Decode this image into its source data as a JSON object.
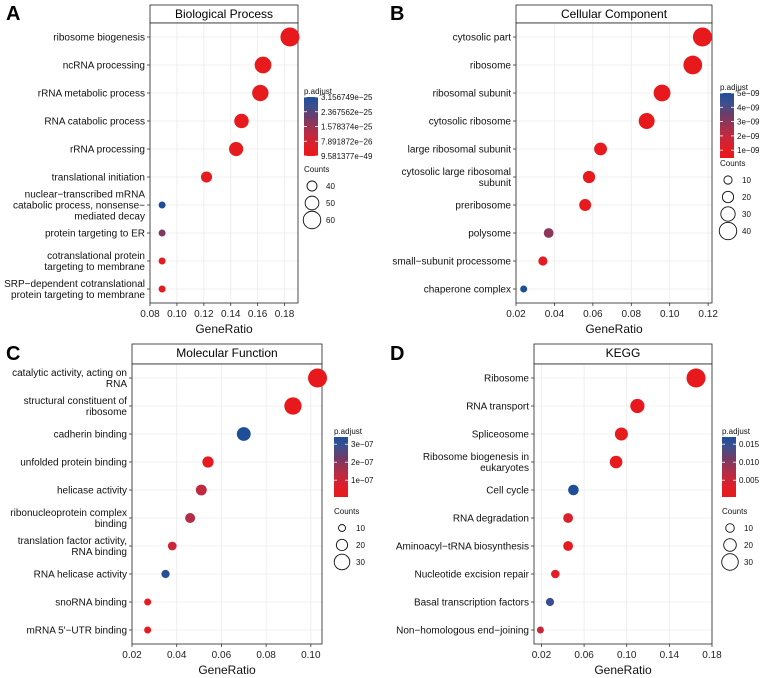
{
  "chart_data": [
    {
      "type": "scatter",
      "panel": "A",
      "title": "Biological Process",
      "xlabel": "GeneRatio",
      "xlim": [
        0.08,
        0.19
      ],
      "xticks": [
        "0.08",
        "0.10",
        "0.12",
        "0.14",
        "0.16",
        "0.18"
      ],
      "categories": [
        [
          "ribosome biogenesis"
        ],
        [
          "ncRNA processing"
        ],
        [
          "rRNA metabolic process"
        ],
        [
          "RNA catabolic process"
        ],
        [
          "rRNA processing"
        ],
        [
          "translational initiation"
        ],
        [
          "nuclear−transcribed mRNA",
          "catabolic process, nonsense−",
          "mediated decay"
        ],
        [
          "protein targeting to ER"
        ],
        [
          "cotranslational protein",
          "targeting to membrane"
        ],
        [
          "SRP−dependent cotranslational",
          "protein targeting to membrane"
        ]
      ],
      "x": [
        0.184,
        0.164,
        0.162,
        0.148,
        0.144,
        0.122,
        0.089,
        0.089,
        0.089,
        0.089
      ],
      "counts": [
        64,
        58,
        57,
        52,
        51,
        43,
        32,
        32,
        32,
        32
      ],
      "color_t": [
        0.0,
        0.02,
        0.02,
        0.03,
        0.03,
        0.05,
        1.0,
        0.6,
        0.06,
        0.06
      ],
      "color_legend_title": "p.adjust",
      "color_ticks": [
        "3.156749e−25",
        "2.367562e−25",
        "1.578374e−25",
        "7.891872e−26",
        "9.581377e−49"
      ],
      "color_tick_t": [
        1.0,
        0.75,
        0.5,
        0.25,
        0.0
      ],
      "size_legend_title": "Counts",
      "size_legend": [
        {
          "label": "40",
          "value": 40
        },
        {
          "label": "50",
          "value": 50
        },
        {
          "label": "60",
          "value": 60
        }
      ]
    },
    {
      "type": "scatter",
      "panel": "B",
      "title": "Cellular Component",
      "xlabel": "GeneRatio",
      "xlim": [
        0.02,
        0.122
      ],
      "xticks": [
        "0.02",
        "0.04",
        "0.06",
        "0.08",
        "0.10",
        "0.12"
      ],
      "categories": [
        [
          "cytosolic part"
        ],
        [
          "ribosome"
        ],
        [
          "ribosomal subunit"
        ],
        [
          "cytosolic ribosome"
        ],
        [
          "large ribosomal subunit"
        ],
        [
          "cytosolic large ribosomal",
          "subunit"
        ],
        [
          "preribosome"
        ],
        [
          "polysome"
        ],
        [
          "small−subunit processome"
        ],
        [
          "chaperone complex"
        ]
      ],
      "x": [
        0.117,
        0.112,
        0.096,
        0.088,
        0.064,
        0.058,
        0.056,
        0.037,
        0.034,
        0.024
      ],
      "counts": [
        45,
        44,
        38,
        35,
        25,
        23,
        22,
        15,
        13,
        6
      ],
      "color_t": [
        0.0,
        0.0,
        0.01,
        0.01,
        0.02,
        0.02,
        0.03,
        0.55,
        0.05,
        1.0
      ],
      "color_legend_title": "p.adjust",
      "color_ticks": [
        "5e−09",
        "4e−09",
        "3e−09",
        "2e−09",
        "1e−09"
      ],
      "color_tick_t": [
        1.0,
        0.78,
        0.56,
        0.34,
        0.12
      ],
      "size_legend_title": "Counts",
      "size_legend": [
        {
          "label": "10",
          "value": 10
        },
        {
          "label": "20",
          "value": 20
        },
        {
          "label": "30",
          "value": 30
        },
        {
          "label": "40",
          "value": 40
        }
      ]
    },
    {
      "type": "scatter",
      "panel": "C",
      "title": "Molecular Function",
      "xlabel": "GeneRatio",
      "xlim": [
        0.02,
        0.105
      ],
      "xticks": [
        "0.02",
        "0.04",
        "0.06",
        "0.08",
        "0.10"
      ],
      "categories": [
        [
          "catalytic activity, acting on",
          "RNA"
        ],
        [
          "structural constituent of",
          "ribosome"
        ],
        [
          "cadherin binding"
        ],
        [
          "unfolded protein binding"
        ],
        [
          "helicase activity"
        ],
        [
          "ribonucleoprotein complex",
          "binding"
        ],
        [
          "translation factor activity,",
          "RNA binding"
        ],
        [
          "RNA helicase activity"
        ],
        [
          "snoRNA binding"
        ],
        [
          "mRNA 5'−UTR binding"
        ]
      ],
      "x": [
        0.103,
        0.092,
        0.07,
        0.054,
        0.051,
        0.046,
        0.038,
        0.035,
        0.027,
        0.027
      ],
      "counts": [
        38,
        34,
        26,
        20,
        19,
        17,
        14,
        13,
        10,
        10
      ],
      "color_t": [
        0.0,
        0.01,
        1.0,
        0.05,
        0.35,
        0.4,
        0.3,
        0.95,
        0.02,
        0.02
      ],
      "color_legend_title": "p.adjust",
      "color_ticks": [
        "3e−07",
        "2e−07",
        "1e−07"
      ],
      "color_tick_t": [
        0.88,
        0.58,
        0.28
      ],
      "size_legend_title": "Counts",
      "size_legend": [
        {
          "label": "10",
          "value": 10
        },
        {
          "label": "20",
          "value": 20
        },
        {
          "label": "30",
          "value": 30
        }
      ]
    },
    {
      "type": "scatter",
      "panel": "D",
      "title": "KEGG",
      "xlabel": "GeneRatio",
      "xlim": [
        0.013,
        0.18
      ],
      "xticks": [
        "0.02",
        "0.06",
        "0.10",
        "0.14",
        "0.18"
      ],
      "categories": [
        [
          "Ribosome"
        ],
        [
          "RNA transport"
        ],
        [
          "Spliceosome"
        ],
        [
          "Ribosome biogenesis in",
          "eukaryotes"
        ],
        [
          "Cell cycle"
        ],
        [
          "RNA degradation"
        ],
        [
          "Aminoacyl−tRNA biosynthesis"
        ],
        [
          "Nucleotide excision repair"
        ],
        [
          "Basal transcription factors"
        ],
        [
          "Non−homologous end−joining"
        ]
      ],
      "x": [
        0.165,
        0.11,
        0.095,
        0.09,
        0.05,
        0.045,
        0.045,
        0.033,
        0.028,
        0.019
      ],
      "counts": [
        36,
        24,
        21,
        20,
        15,
        13,
        13,
        10,
        9,
        6
      ],
      "color_t": [
        0.0,
        0.0,
        0.02,
        0.02,
        1.0,
        0.2,
        0.05,
        0.15,
        0.85,
        0.3
      ],
      "color_legend_title": "p.adjust",
      "color_ticks": [
        "0.015",
        "0.010",
        "0.005"
      ],
      "color_tick_t": [
        0.88,
        0.58,
        0.28
      ],
      "size_legend_title": "Counts",
      "size_legend": [
        {
          "label": "10",
          "value": 10
        },
        {
          "label": "20",
          "value": 20
        },
        {
          "label": "30",
          "value": 30
        }
      ]
    }
  ]
}
